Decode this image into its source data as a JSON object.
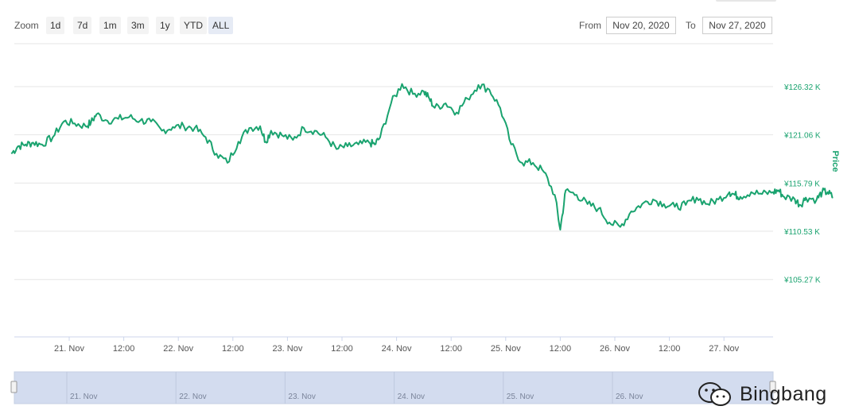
{
  "zoom": {
    "label": "Zoom",
    "buttons": [
      "1d",
      "7d",
      "1m",
      "3m",
      "1y",
      "YTD",
      "ALL"
    ]
  },
  "range": {
    "from_label": "From",
    "from_value": "Nov 20, 2020",
    "to_label": "To",
    "to_value": "Nov 27, 2020"
  },
  "watermark": {
    "text": "Bingbang"
  },
  "colors": {
    "line": "#1aa36f",
    "axis_text": "#1aa36f",
    "grid": "#e6e6e6",
    "navigator": "#d3dcef"
  },
  "chart_data": {
    "type": "line",
    "ylabel": "Price",
    "yticks": [
      "¥105.27 K",
      "¥110.53 K",
      "¥115.79 K",
      "¥121.06 K",
      "¥126.32 K"
    ],
    "ytick_values": [
      105.27,
      110.53,
      115.79,
      121.06,
      126.32
    ],
    "xticks": [
      "21. Nov",
      "12:00",
      "22. Nov",
      "12:00",
      "23. Nov",
      "12:00",
      "24. Nov",
      "12:00",
      "25. Nov",
      "12:00",
      "26. Nov",
      "12:00",
      "27. Nov"
    ],
    "ylim": [
      99.0,
      131.0
    ],
    "navigator_labels": [
      "21. Nov",
      "22. Nov",
      "23. Nov",
      "24. Nov",
      "25. Nov",
      "26. Nov"
    ],
    "series": [
      {
        "x": [
          -0.53,
          -0.47,
          -0.4,
          -0.33,
          -0.25,
          -0.15,
          -0.05,
          0.05,
          0.15,
          0.2,
          0.25,
          0.35,
          0.45,
          0.55,
          0.65,
          0.75,
          0.85,
          0.95,
          1.05,
          1.15,
          1.25,
          1.35,
          1.45,
          1.55,
          1.65,
          1.75,
          1.8,
          1.85,
          1.95,
          2.05,
          2.15,
          2.25,
          2.35,
          2.45,
          2.55,
          2.65,
          2.75,
          2.8,
          2.85,
          2.95,
          3.05,
          3.15,
          3.25,
          3.3,
          3.35,
          3.45,
          3.55,
          3.65,
          3.75,
          3.85,
          3.95,
          4.05,
          4.15,
          4.25,
          4.35,
          4.45,
          4.5,
          4.55,
          4.65,
          4.75,
          4.85,
          4.95,
          5.05,
          5.15,
          5.25,
          5.35,
          5.45,
          5.55,
          5.65,
          5.75,
          5.85,
          5.95,
          6.05,
          6.1,
          6.15,
          6.25,
          6.35,
          6.45,
          6.5,
          6.55,
          6.65,
          6.7,
          6.75,
          6.85,
          6.9,
          6.95,
          7.0
        ],
        "y": [
          119.0,
          119.8,
          120.0,
          120.2,
          120.0,
          120.8,
          122.5,
          122.3,
          122.0,
          122.4,
          123.3,
          122.6,
          122.8,
          123.0,
          122.6,
          122.5,
          121.5,
          121.9,
          122.0,
          121.8,
          120.8,
          119.0,
          118.0,
          120.3,
          121.8,
          122.0,
          120.3,
          121.5,
          121.0,
          120.5,
          121.8,
          121.5,
          120.8,
          119.5,
          119.8,
          120.0,
          120.2,
          120.0,
          120.8,
          124.5,
          126.6,
          125.5,
          125.8,
          125.0,
          124.0,
          124.5,
          123.5,
          125.0,
          126.5,
          126.0,
          124.0,
          120.0,
          118.0,
          118.0,
          117.0,
          114.5,
          110.7,
          115.0,
          114.5,
          113.5,
          113.0,
          111.5,
          111.0,
          112.7,
          113.5,
          114.0,
          113.5,
          113.2,
          113.4,
          114.2,
          113.5,
          114.0,
          114.8,
          114.5,
          114.3,
          114.8,
          114.6,
          114.8,
          115.0,
          114.3,
          114.0,
          113.4,
          114.2,
          114.0,
          114.8,
          114.8,
          114.2
        ]
      }
    ]
  }
}
